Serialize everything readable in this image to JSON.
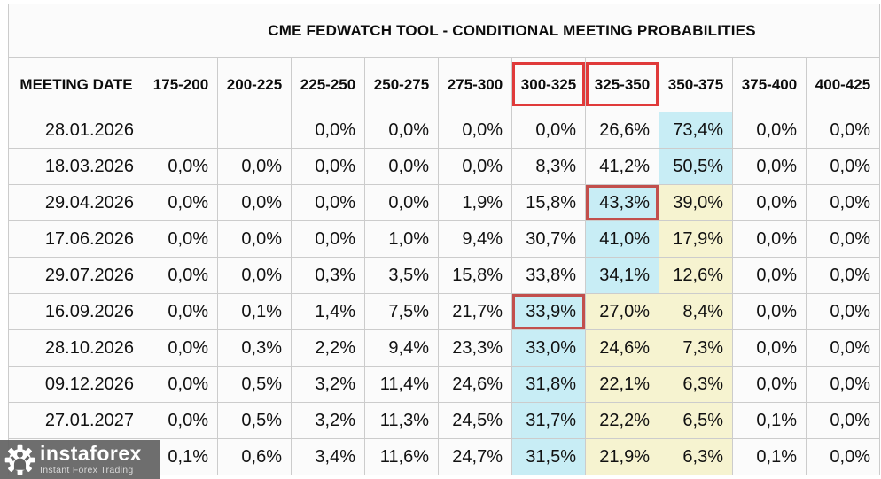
{
  "table": {
    "title": "CME FEDWATCH TOOL - CONDITIONAL MEETING PROBABILITIES",
    "date_column_header": "MEETING DATE",
    "rate_columns": [
      {
        "label": "175-200",
        "boxed": false
      },
      {
        "label": "200-225",
        "boxed": false
      },
      {
        "label": "225-250",
        "boxed": false
      },
      {
        "label": "250-275",
        "boxed": false
      },
      {
        "label": "275-300",
        "boxed": false
      },
      {
        "label": "300-325",
        "boxed": true
      },
      {
        "label": "325-350",
        "boxed": true
      },
      {
        "label": "350-375",
        "boxed": false
      },
      {
        "label": "375-400",
        "boxed": false
      },
      {
        "label": "400-425",
        "boxed": false
      }
    ],
    "rows": [
      {
        "date": "28.01.2026",
        "cells": [
          "",
          "",
          "0,0%",
          "0,0%",
          "0,0%",
          "0,0%",
          "26,6%",
          {
            "v": "73,4%",
            "hl": "cyan"
          },
          "0,0%",
          "0,0%"
        ]
      },
      {
        "date": "18.03.2026",
        "cells": [
          "0,0%",
          "0,0%",
          "0,0%",
          "0,0%",
          "0,0%",
          "8,3%",
          "41,2%",
          {
            "v": "50,5%",
            "hl": "cyan"
          },
          "0,0%",
          "0,0%"
        ]
      },
      {
        "date": "29.04.2026",
        "cells": [
          "0,0%",
          "0,0%",
          "0,0%",
          "0,0%",
          "1,9%",
          "15,8%",
          {
            "v": "43,3%",
            "hl": "cyan",
            "box": true
          },
          {
            "v": "39,0%",
            "hl": "yellow"
          },
          "0,0%",
          "0,0%"
        ]
      },
      {
        "date": "17.06.2026",
        "cells": [
          "0,0%",
          "0,0%",
          "0,0%",
          "1,0%",
          "9,4%",
          "30,7%",
          {
            "v": "41,0%",
            "hl": "cyan"
          },
          {
            "v": "17,9%",
            "hl": "yellow"
          },
          "0,0%",
          "0,0%"
        ]
      },
      {
        "date": "29.07.2026",
        "cells": [
          "0,0%",
          "0,0%",
          "0,3%",
          "3,5%",
          "15,8%",
          "33,8%",
          {
            "v": "34,1%",
            "hl": "cyan"
          },
          {
            "v": "12,6%",
            "hl": "yellow"
          },
          "0,0%",
          "0,0%"
        ]
      },
      {
        "date": "16.09.2026",
        "cells": [
          "0,0%",
          "0,1%",
          "1,4%",
          "7,5%",
          "21,7%",
          {
            "v": "33,9%",
            "hl": "cyan",
            "box": true
          },
          {
            "v": "27,0%",
            "hl": "yellow"
          },
          {
            "v": "8,4%",
            "hl": "yellow"
          },
          "0,0%",
          "0,0%"
        ]
      },
      {
        "date": "28.10.2026",
        "cells": [
          "0,0%",
          "0,3%",
          "2,2%",
          "9,4%",
          "23,3%",
          {
            "v": "33,0%",
            "hl": "cyan"
          },
          {
            "v": "24,6%",
            "hl": "yellow"
          },
          {
            "v": "7,3%",
            "hl": "yellow"
          },
          "0,0%",
          "0,0%"
        ]
      },
      {
        "date": "09.12.2026",
        "cells": [
          "0,0%",
          "0,5%",
          "3,2%",
          "11,4%",
          "24,6%",
          {
            "v": "31,8%",
            "hl": "cyan"
          },
          {
            "v": "22,1%",
            "hl": "yellow"
          },
          {
            "v": "6,3%",
            "hl": "yellow"
          },
          "0,0%",
          "0,0%"
        ]
      },
      {
        "date": "27.01.2027",
        "cells": [
          "0,0%",
          "0,5%",
          "3,2%",
          "11,3%",
          "24,5%",
          {
            "v": "31,7%",
            "hl": "cyan"
          },
          {
            "v": "22,2%",
            "hl": "yellow"
          },
          {
            "v": "6,5%",
            "hl": "yellow"
          },
          "0,1%",
          "0,0%"
        ]
      },
      {
        "date": "",
        "cells": [
          "0,1%",
          "0,6%",
          "3,4%",
          "11,6%",
          "24,7%",
          {
            "v": "31,5%",
            "hl": "cyan"
          },
          {
            "v": "21,9%",
            "hl": "yellow"
          },
          {
            "v": "6,3%",
            "hl": "yellow"
          },
          "0,1%",
          "0,0%"
        ]
      }
    ]
  },
  "colors": {
    "highlight_cyan": "#c8edf5",
    "highlight_yellow": "#f6f3d0",
    "header_box_red": "#e03a3a",
    "cell_box_red": "#c24f4c"
  },
  "watermark": {
    "brand": "instaforex",
    "tagline": "Instant Forex Trading",
    "icon": "gear-person-icon"
  }
}
